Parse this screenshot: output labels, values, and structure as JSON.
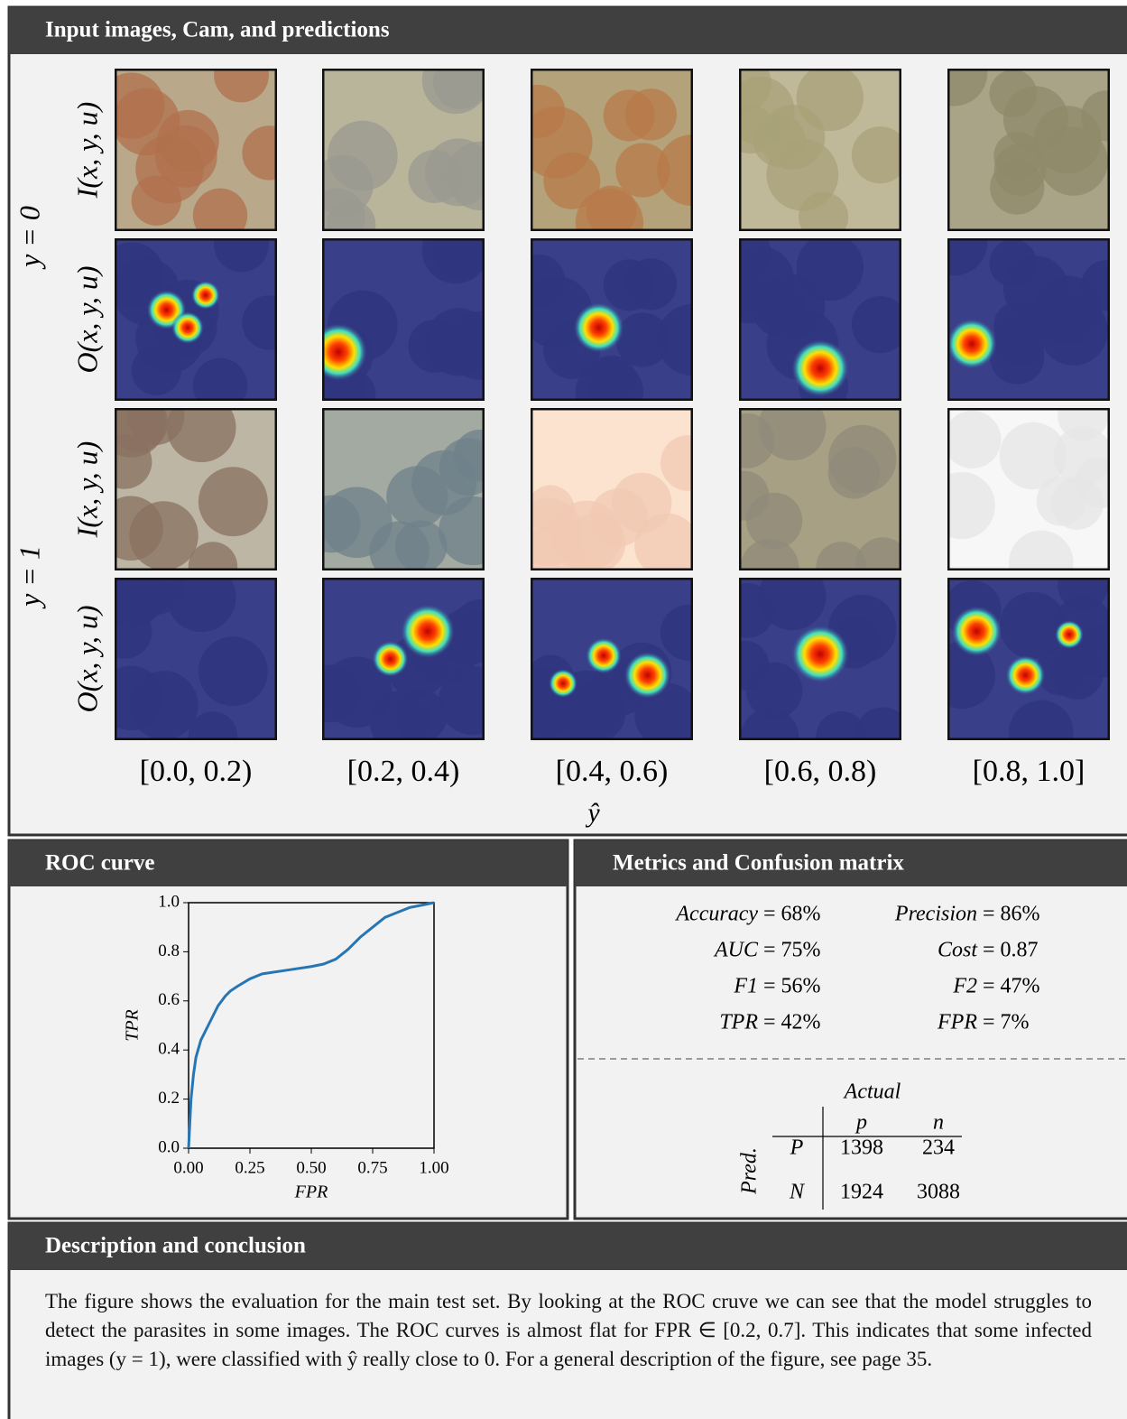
{
  "panels": {
    "images": "Input images, Cam, and predictions",
    "roc": "ROC curve",
    "metrics": "Metrics and Confusion matrix",
    "description": "Description and conclusion"
  },
  "grid": {
    "groups": [
      "y = 0",
      "y = 1"
    ],
    "rows": [
      "I(x, y, u)",
      "O(x, y, u)",
      "I(x, y, u)",
      "O(x, y, u)"
    ],
    "columns": [
      "[0.0, 0.2)",
      "[0.2, 0.4)",
      "[0.4, 0.6)",
      "[0.6, 0.8)",
      "[0.8, 1.0]"
    ],
    "x_label": "ŷ"
  },
  "chart_data": {
    "type": "line",
    "xlabel": "FPR",
    "ylabel": "TPR",
    "color": "#2776b4",
    "x": [
      0,
      0.01,
      0.02,
      0.03,
      0.05,
      0.08,
      0.1,
      0.12,
      0.15,
      0.17,
      0.2,
      0.25,
      0.3,
      0.4,
      0.5,
      0.55,
      0.6,
      0.65,
      0.7,
      0.75,
      0.8,
      0.85,
      0.9,
      0.95,
      1.0
    ],
    "values": [
      0,
      0.2,
      0.3,
      0.37,
      0.44,
      0.5,
      0.54,
      0.58,
      0.62,
      0.64,
      0.66,
      0.69,
      0.71,
      0.725,
      0.74,
      0.75,
      0.77,
      0.81,
      0.86,
      0.9,
      0.94,
      0.96,
      0.98,
      0.99,
      1.0
    ],
    "xlim": [
      0,
      1
    ],
    "ylim": [
      0,
      1
    ],
    "xticks": [
      {
        "value": 0,
        "label": "0.00"
      },
      {
        "value": 0.25,
        "label": "0.25"
      },
      {
        "value": 0.5,
        "label": "0.50"
      },
      {
        "value": 0.75,
        "label": "0.75"
      },
      {
        "value": 1,
        "label": "1.00"
      }
    ],
    "yticks": [
      {
        "value": 0,
        "label": "0.0"
      },
      0.2,
      0.4,
      0.6,
      0.8,
      {
        "value": 1,
        "label": "1.0"
      }
    ]
  },
  "metrics": [
    {
      "name": "Accuracy",
      "value": "= 68%"
    },
    {
      "name": "Precision",
      "value": "= 86%"
    },
    {
      "name": "AUC",
      "value": "= 75%"
    },
    {
      "name": "Cost",
      "value": "= 0.87"
    },
    {
      "name": "F1",
      "value": "= 56%"
    },
    {
      "name": "F2",
      "value": "= 47%"
    },
    {
      "name": "TPR",
      "value": "= 42%"
    },
    {
      "name": "FPR",
      "value": "= 7%"
    }
  ],
  "confusion_matrix": {
    "actual_label": "Actual",
    "pred_label": "Pred.",
    "columns": [
      "p",
      "n"
    ],
    "rows": [
      {
        "label": "P",
        "values": [
          1398,
          234
        ]
      },
      {
        "label": "N",
        "values": [
          1924,
          3088
        ]
      }
    ]
  },
  "description": "The figure shows the evaluation for the main test set. By looking at the ROC cruve we can see that the model struggles to detect the parasites in some images. The ROC curves is almost flat for FPR ∈ [0.2, 0.7]. This indicates that some infected images (y = 1), were classified with ŷ really close to 0. For a general description of the figure, see page 35."
}
